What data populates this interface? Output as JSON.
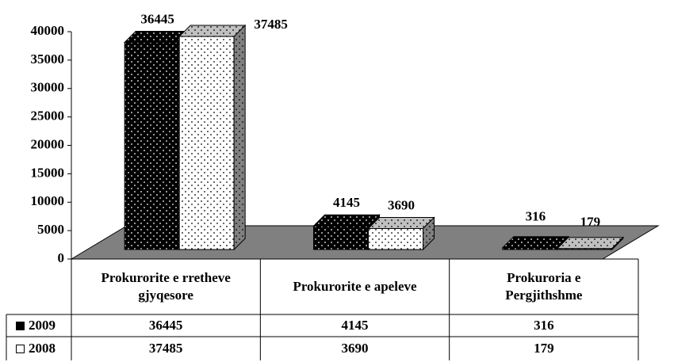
{
  "chart_data": {
    "type": "bar3d",
    "categories": [
      "Prokurorite e rretheve gjyqesore",
      "Prokurorite e apeleve",
      "Prokuroria e Pergjithshme"
    ],
    "series": [
      {
        "name": "2009",
        "color": "#000000",
        "values": [
          36445,
          4145,
          316
        ]
      },
      {
        "name": "2008",
        "color": "#ffffff",
        "values": [
          37485,
          3690,
          179
        ]
      }
    ],
    "ylim": [
      0,
      40000
    ],
    "yticks": [
      0,
      5000,
      10000,
      15000,
      20000,
      25000,
      30000,
      35000,
      40000
    ],
    "data_table": true
  }
}
